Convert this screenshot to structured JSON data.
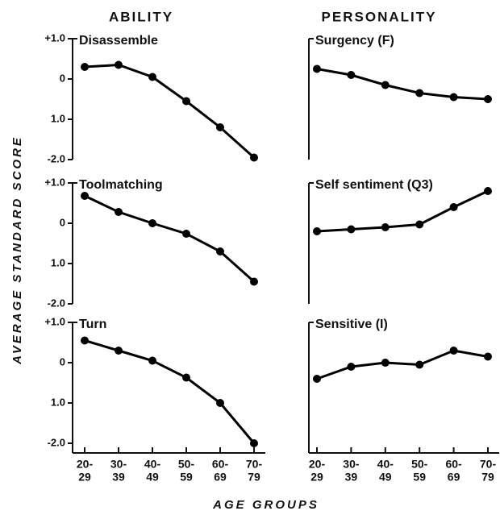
{
  "column_titles": [
    "ABILITY",
    "PERSONALITY"
  ],
  "ylabel": "AVERAGE STANDARD SCORE",
  "xlabel": "AGE GROUPS",
  "chart_data": [
    {
      "type": "line",
      "title": "Disassemble",
      "color": "#000000",
      "values": [
        0.3,
        0.35,
        0.05,
        -0.55,
        -1.2,
        -1.95
      ],
      "ylim": [
        -2,
        1
      ],
      "yticks": [
        {
          "value": 1,
          "label": "+1.0"
        },
        0,
        {
          "value": -1,
          "label": "1.0"
        },
        {
          "value": -2,
          "label": "-2.0"
        }
      ]
    },
    {
      "type": "line",
      "title": "Toolmatching",
      "color": "#000000",
      "values": [
        0.68,
        0.28,
        0,
        -0.26,
        -0.7,
        -1.45
      ],
      "ylim": [
        -2,
        1
      ],
      "yticks": [
        {
          "value": 1,
          "label": "+1.0"
        },
        0,
        {
          "value": -1,
          "label": "1.0"
        },
        {
          "value": -2,
          "label": "-2.0"
        }
      ]
    },
    {
      "type": "line",
      "title": "Turn",
      "color": "#000000",
      "values": [
        0.55,
        0.3,
        0.05,
        -0.37,
        -1.0,
        -2.0
      ],
      "ylim": [
        -2,
        1
      ],
      "yticks": [
        {
          "value": 1,
          "label": "+1.0"
        },
        0,
        {
          "value": -1,
          "label": "1.0"
        },
        {
          "value": -2,
          "label": "-2.0"
        }
      ],
      "categories": [
        [
          "20-",
          "29"
        ],
        [
          "30-",
          "39"
        ],
        [
          "40-",
          "49"
        ],
        [
          "50-",
          "59"
        ],
        [
          "60-",
          "69"
        ],
        [
          "70-",
          "79"
        ]
      ]
    },
    {
      "type": "line",
      "title": "Surgency (F)",
      "color": "#000000",
      "values": [
        0.25,
        0.1,
        -0.15,
        -0.35,
        -0.45,
        -0.5
      ],
      "ylim": [
        -2,
        1
      ]
    },
    {
      "type": "line",
      "title": "Self sentiment (Q3)",
      "color": "#000000",
      "values": [
        -0.2,
        -0.15,
        -0.1,
        -0.03,
        0.4,
        0.8
      ],
      "ylim": [
        -2,
        1
      ]
    },
    {
      "type": "line",
      "title": "Sensitive (I)",
      "color": "#000000",
      "values": [
        -0.4,
        -0.1,
        0,
        -0.05,
        0.3,
        0.15
      ],
      "ylim": [
        -2,
        1
      ],
      "categories": [
        [
          "20-",
          "29"
        ],
        [
          "30-",
          "39"
        ],
        [
          "40-",
          "49"
        ],
        [
          "50-",
          "59"
        ],
        [
          "60-",
          "69"
        ],
        [
          "70-",
          "79"
        ]
      ]
    }
  ]
}
